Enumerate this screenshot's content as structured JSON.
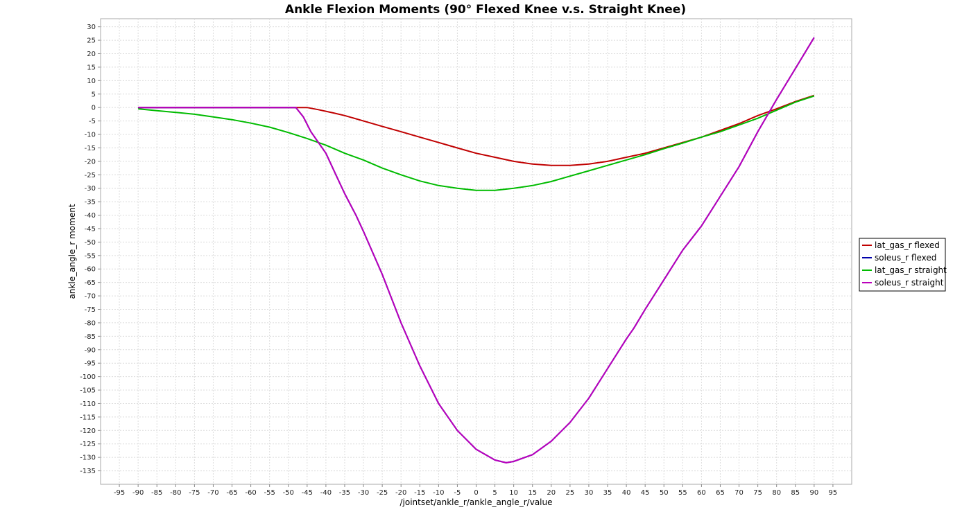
{
  "chart_data": {
    "type": "line",
    "title": "Ankle Flexion Moments (90° Flexed Knee v.s. Straight Knee)",
    "xlabel": "/jointset/ankle_r/ankle_angle_r/value",
    "ylabel": "ankle_angle_r moment",
    "xlim": [
      -100,
      100
    ],
    "ylim": [
      -140,
      33
    ],
    "x_ticks": [
      -95,
      -90,
      -85,
      -80,
      -75,
      -70,
      -65,
      -60,
      -55,
      -50,
      -45,
      -40,
      -35,
      -30,
      -25,
      -20,
      -15,
      -10,
      -5,
      0,
      5,
      10,
      15,
      20,
      25,
      30,
      35,
      40,
      45,
      50,
      55,
      60,
      65,
      70,
      75,
      80,
      85,
      90,
      95
    ],
    "y_ticks": [
      30,
      25,
      20,
      15,
      10,
      5,
      0,
      -5,
      -10,
      -15,
      -20,
      -25,
      -30,
      -35,
      -40,
      -45,
      -50,
      -55,
      -60,
      -65,
      -70,
      -75,
      -80,
      -85,
      -90,
      -95,
      -100,
      -105,
      -110,
      -115,
      -120,
      -125,
      -130,
      -135
    ],
    "grid": true,
    "legend_position": "right",
    "series": [
      {
        "name": "lat_gas_r flexed",
        "color": "#c00000",
        "points": [
          [
            -90,
            0
          ],
          [
            -45,
            0
          ],
          [
            -42,
            -0.8
          ],
          [
            -38,
            -2
          ],
          [
            -35,
            -3
          ],
          [
            -30,
            -5
          ],
          [
            -25,
            -7
          ],
          [
            -20,
            -9
          ],
          [
            -15,
            -11
          ],
          [
            -10,
            -13
          ],
          [
            -5,
            -15
          ],
          [
            0,
            -17
          ],
          [
            5,
            -18.5
          ],
          [
            10,
            -20
          ],
          [
            15,
            -21
          ],
          [
            20,
            -21.5
          ],
          [
            25,
            -21.5
          ],
          [
            30,
            -21
          ],
          [
            35,
            -20
          ],
          [
            40,
            -18.5
          ],
          [
            45,
            -17
          ],
          [
            50,
            -15
          ],
          [
            55,
            -13
          ],
          [
            60,
            -11
          ],
          [
            65,
            -8.5
          ],
          [
            70,
            -6
          ],
          [
            75,
            -3
          ],
          [
            80,
            -0.5
          ],
          [
            85,
            2.2
          ],
          [
            90,
            4.5
          ]
        ]
      },
      {
        "name": "soleus_r flexed",
        "color": "#0000aa",
        "points": [
          [
            -90,
            0
          ],
          [
            -48,
            0
          ],
          [
            -46,
            -3.5
          ],
          [
            -44,
            -9
          ],
          [
            -42,
            -13
          ],
          [
            -40,
            -17
          ],
          [
            -37,
            -26
          ],
          [
            -35,
            -32
          ],
          [
            -32,
            -40
          ],
          [
            -30,
            -46
          ],
          [
            -25,
            -62
          ],
          [
            -20,
            -80
          ],
          [
            -15,
            -96
          ],
          [
            -10,
            -110
          ],
          [
            -5,
            -120
          ],
          [
            0,
            -127
          ],
          [
            5,
            -131
          ],
          [
            8,
            -132
          ],
          [
            10,
            -131.5
          ],
          [
            15,
            -129
          ],
          [
            20,
            -124
          ],
          [
            25,
            -117
          ],
          [
            30,
            -108
          ],
          [
            35,
            -97
          ],
          [
            40,
            -86
          ],
          [
            42,
            -82
          ],
          [
            45,
            -75
          ],
          [
            50,
            -64
          ],
          [
            55,
            -53
          ],
          [
            60,
            -44
          ],
          [
            65,
            -33
          ],
          [
            70,
            -22
          ],
          [
            75,
            -9
          ],
          [
            80,
            3
          ],
          [
            85,
            14.5
          ],
          [
            90,
            26
          ]
        ]
      },
      {
        "name": "lat_gas_r straight",
        "color": "#00bb00",
        "points": [
          [
            -90,
            -0.5
          ],
          [
            -85,
            -1.2
          ],
          [
            -80,
            -1.8
          ],
          [
            -75,
            -2.5
          ],
          [
            -70,
            -3.5
          ],
          [
            -65,
            -4.5
          ],
          [
            -60,
            -5.8
          ],
          [
            -55,
            -7.3
          ],
          [
            -50,
            -9.3
          ],
          [
            -45,
            -11.5
          ],
          [
            -40,
            -14
          ],
          [
            -35,
            -17
          ],
          [
            -30,
            -19.5
          ],
          [
            -25,
            -22.5
          ],
          [
            -20,
            -25
          ],
          [
            -15,
            -27.3
          ],
          [
            -10,
            -29
          ],
          [
            -5,
            -30
          ],
          [
            0,
            -30.8
          ],
          [
            5,
            -30.8
          ],
          [
            10,
            -30
          ],
          [
            15,
            -29
          ],
          [
            20,
            -27.5
          ],
          [
            25,
            -25.5
          ],
          [
            30,
            -23.5
          ],
          [
            35,
            -21.5
          ],
          [
            40,
            -19.5
          ],
          [
            45,
            -17.5
          ],
          [
            50,
            -15.3
          ],
          [
            55,
            -13.2
          ],
          [
            60,
            -11
          ],
          [
            65,
            -9
          ],
          [
            70,
            -6.5
          ],
          [
            75,
            -4
          ],
          [
            80,
            -1
          ],
          [
            85,
            2
          ],
          [
            90,
            4.3
          ]
        ]
      },
      {
        "name": "soleus_r straight",
        "color": "#bb00bb",
        "points": [
          [
            -90,
            0
          ],
          [
            -48,
            0
          ],
          [
            -46,
            -3.5
          ],
          [
            -44,
            -9
          ],
          [
            -42,
            -13
          ],
          [
            -40,
            -17
          ],
          [
            -37,
            -26
          ],
          [
            -35,
            -32
          ],
          [
            -32,
            -40
          ],
          [
            -30,
            -46
          ],
          [
            -25,
            -62
          ],
          [
            -20,
            -80
          ],
          [
            -15,
            -96
          ],
          [
            -10,
            -110
          ],
          [
            -5,
            -120
          ],
          [
            0,
            -127
          ],
          [
            5,
            -131
          ],
          [
            8,
            -132
          ],
          [
            10,
            -131.5
          ],
          [
            15,
            -129
          ],
          [
            20,
            -124
          ],
          [
            25,
            -117
          ],
          [
            30,
            -108
          ],
          [
            35,
            -97
          ],
          [
            40,
            -86
          ],
          [
            42,
            -82
          ],
          [
            45,
            -75
          ],
          [
            50,
            -64
          ],
          [
            55,
            -53
          ],
          [
            60,
            -44
          ],
          [
            65,
            -33
          ],
          [
            70,
            -22
          ],
          [
            75,
            -9
          ],
          [
            80,
            3
          ],
          [
            85,
            14.5
          ],
          [
            90,
            26
          ]
        ]
      }
    ]
  }
}
